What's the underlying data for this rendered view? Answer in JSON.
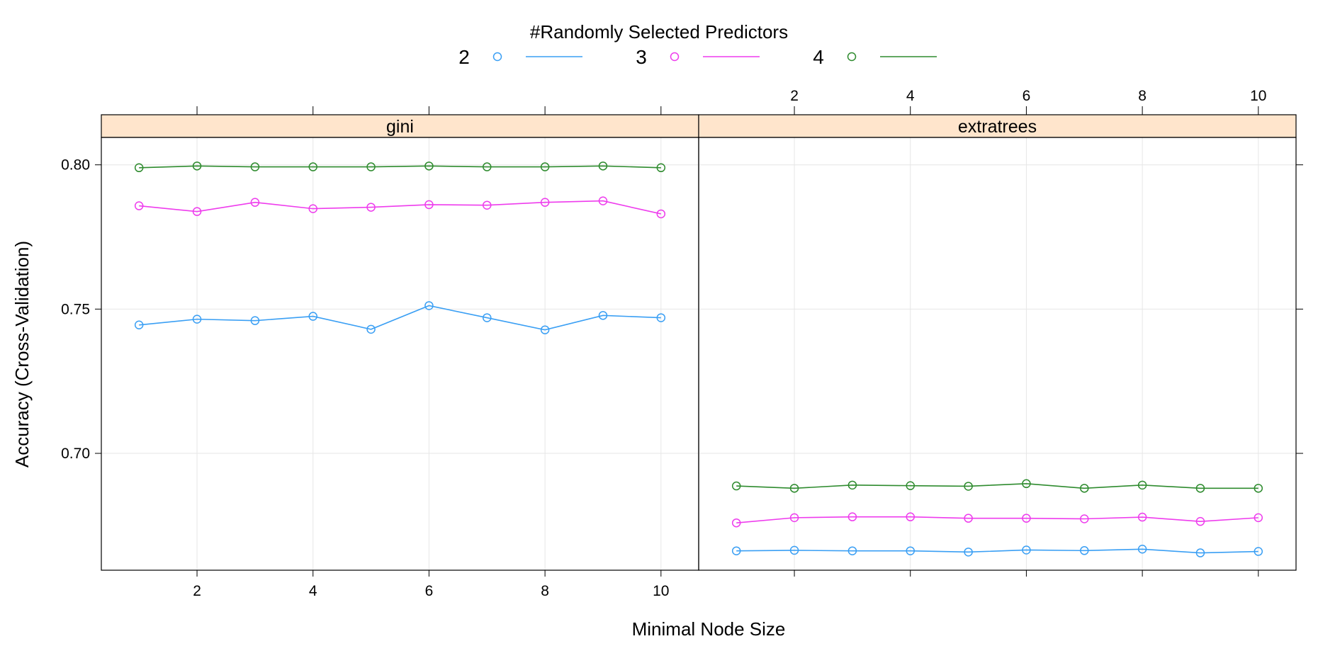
{
  "chart_data": {
    "type": "line",
    "legend_title": "#Randomly Selected Predictors",
    "legend_placement": "top",
    "xlabel": "Minimal Node Size",
    "ylabel": "Accuracy (Cross-Validation)",
    "x": [
      1,
      2,
      3,
      4,
      5,
      6,
      7,
      8,
      9,
      10
    ],
    "xlim": [
      0.35,
      10.65
    ],
    "ylim": [
      0.6595,
      0.8095
    ],
    "xticks": [
      2,
      4,
      6,
      8,
      10
    ],
    "xtick_labels": [
      "2",
      "4",
      "6",
      "8",
      "10"
    ],
    "yticks": [
      0.7,
      0.75,
      0.8
    ],
    "ytick_labels": [
      "0.70",
      "0.75",
      "0.80"
    ],
    "grid": true,
    "panels": [
      {
        "strip": "gini",
        "series": [
          {
            "name": "2",
            "color": "#3a9ff4",
            "values": [
              0.7445,
              0.7465,
              0.746,
              0.7475,
              0.743,
              0.7512,
              0.747,
              0.7428,
              0.7478,
              0.747
            ]
          },
          {
            "name": "3",
            "color": "#ee3ced",
            "values": [
              0.7858,
              0.7838,
              0.787,
              0.7848,
              0.7853,
              0.7862,
              0.786,
              0.787,
              0.7875,
              0.783
            ]
          },
          {
            "name": "4",
            "color": "#2e8b2e",
            "values": [
              0.799,
              0.7996,
              0.7993,
              0.7993,
              0.7993,
              0.7996,
              0.7993,
              0.7993,
              0.7996,
              0.799
            ]
          }
        ]
      },
      {
        "strip": "extratrees",
        "series": [
          {
            "name": "2",
            "color": "#3a9ff4",
            "values": [
              0.6662,
              0.6664,
              0.6662,
              0.6662,
              0.6658,
              0.6665,
              0.6663,
              0.6668,
              0.6655,
              0.666
            ]
          },
          {
            "name": "3",
            "color": "#ee3ced",
            "values": [
              0.6759,
              0.6777,
              0.678,
              0.678,
              0.6775,
              0.6775,
              0.6773,
              0.6779,
              0.6764,
              0.6777
            ]
          },
          {
            "name": "4",
            "color": "#2e8b2e",
            "values": [
              0.6887,
              0.6879,
              0.689,
              0.6888,
              0.6886,
              0.6895,
              0.6879,
              0.689,
              0.6879,
              0.6879
            ]
          }
        ]
      }
    ],
    "colors": {
      "strip_bg": "#ffe5cc",
      "grid": "#e6e6e6",
      "frame": "#000000"
    }
  }
}
